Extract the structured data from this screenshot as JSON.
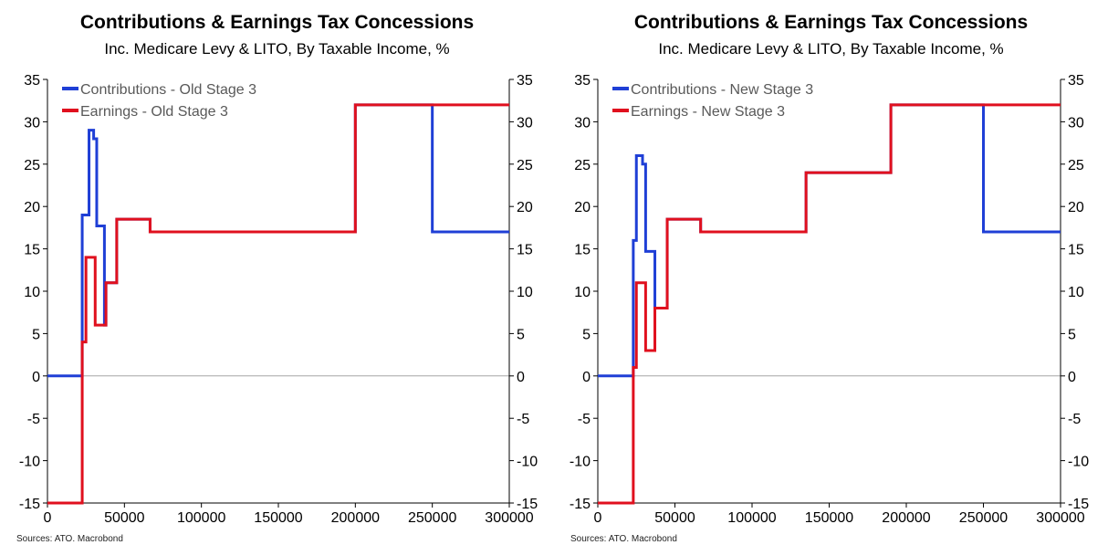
{
  "chart_data": [
    {
      "type": "line",
      "title": "Contributions & Earnings Tax Concessions",
      "subtitle": "Inc. Medicare Levy & LITO, By Taxable Income, %",
      "source": "Sources: ATO. Macrobond",
      "xlim": [
        0,
        300000
      ],
      "ylim": [
        -15,
        35
      ],
      "x_ticks": [
        0,
        50000,
        100000,
        150000,
        200000,
        250000,
        300000
      ],
      "y_ticks": [
        -15,
        -10,
        -5,
        0,
        5,
        10,
        15,
        20,
        25,
        30,
        35
      ],
      "y_axis_both_sides": true,
      "zero_line": true,
      "grid": false,
      "legend_position": "top-left",
      "series": [
        {
          "name": "Contributions - Old Stage 3",
          "color": "#1f3fd6",
          "step": true,
          "points": [
            [
              0,
              0
            ],
            [
              22575,
              0
            ],
            [
              22575,
              19
            ],
            [
              27000,
              19
            ],
            [
              27000,
              29
            ],
            [
              30000,
              29
            ],
            [
              30000,
              28
            ],
            [
              32000,
              28
            ],
            [
              32000,
              17.7
            ],
            [
              37000,
              17.7
            ],
            [
              37000,
              6
            ],
            [
              38000,
              6
            ],
            [
              38000,
              11
            ],
            [
              45000,
              11
            ],
            [
              45000,
              18.5
            ],
            [
              66667,
              18.5
            ],
            [
              66667,
              17
            ],
            [
              200000,
              17
            ],
            [
              200000,
              32
            ],
            [
              250000,
              32
            ],
            [
              250000,
              17
            ],
            [
              300000,
              17
            ]
          ]
        },
        {
          "name": "Earnings - Old Stage 3",
          "color": "#e0101e",
          "step": true,
          "points": [
            [
              0,
              -15
            ],
            [
              22575,
              -15
            ],
            [
              22575,
              4
            ],
            [
              25000,
              4
            ],
            [
              25000,
              14
            ],
            [
              31000,
              14
            ],
            [
              31000,
              6
            ],
            [
              38000,
              6
            ],
            [
              38000,
              11
            ],
            [
              45000,
              11
            ],
            [
              45000,
              18.5
            ],
            [
              66667,
              18.5
            ],
            [
              66667,
              17
            ],
            [
              200000,
              17
            ],
            [
              200000,
              32
            ],
            [
              300000,
              32
            ]
          ]
        }
      ]
    },
    {
      "type": "line",
      "title": "Contributions & Earnings Tax Concessions",
      "subtitle": "Inc. Medicare Levy & LITO, By Taxable Income, %",
      "source": "Sources: ATO. Macrobond",
      "xlim": [
        0,
        300000
      ],
      "ylim": [
        -15,
        35
      ],
      "x_ticks": [
        0,
        50000,
        100000,
        150000,
        200000,
        250000,
        300000
      ],
      "y_ticks": [
        -15,
        -10,
        -5,
        0,
        5,
        10,
        15,
        20,
        25,
        30,
        35
      ],
      "y_axis_both_sides": true,
      "zero_line": true,
      "grid": false,
      "legend_position": "top-left",
      "series": [
        {
          "name": "Contributions - New Stage 3",
          "color": "#1f3fd6",
          "step": true,
          "points": [
            [
              0,
              0
            ],
            [
              23000,
              0
            ],
            [
              23000,
              16
            ],
            [
              25000,
              16
            ],
            [
              25000,
              26
            ],
            [
              29000,
              26
            ],
            [
              29000,
              25
            ],
            [
              31000,
              25
            ],
            [
              31000,
              14.7
            ],
            [
              37000,
              14.7
            ],
            [
              37000,
              8
            ],
            [
              45000,
              8
            ],
            [
              45000,
              18.5
            ],
            [
              66667,
              18.5
            ],
            [
              66667,
              17
            ],
            [
              135000,
              17
            ],
            [
              135000,
              24
            ],
            [
              190000,
              24
            ],
            [
              190000,
              32
            ],
            [
              250000,
              32
            ],
            [
              250000,
              17
            ],
            [
              300000,
              17
            ]
          ]
        },
        {
          "name": "Earnings - New Stage 3",
          "color": "#e0101e",
          "step": true,
          "points": [
            [
              0,
              -15
            ],
            [
              23000,
              -15
            ],
            [
              23000,
              1
            ],
            [
              25000,
              1
            ],
            [
              25000,
              11
            ],
            [
              31000,
              11
            ],
            [
              31000,
              3
            ],
            [
              37000,
              3
            ],
            [
              37000,
              8
            ],
            [
              45000,
              8
            ],
            [
              45000,
              18.5
            ],
            [
              66667,
              18.5
            ],
            [
              66667,
              17
            ],
            [
              135000,
              17
            ],
            [
              135000,
              24
            ],
            [
              190000,
              24
            ],
            [
              190000,
              32
            ],
            [
              300000,
              32
            ]
          ]
        }
      ]
    }
  ]
}
